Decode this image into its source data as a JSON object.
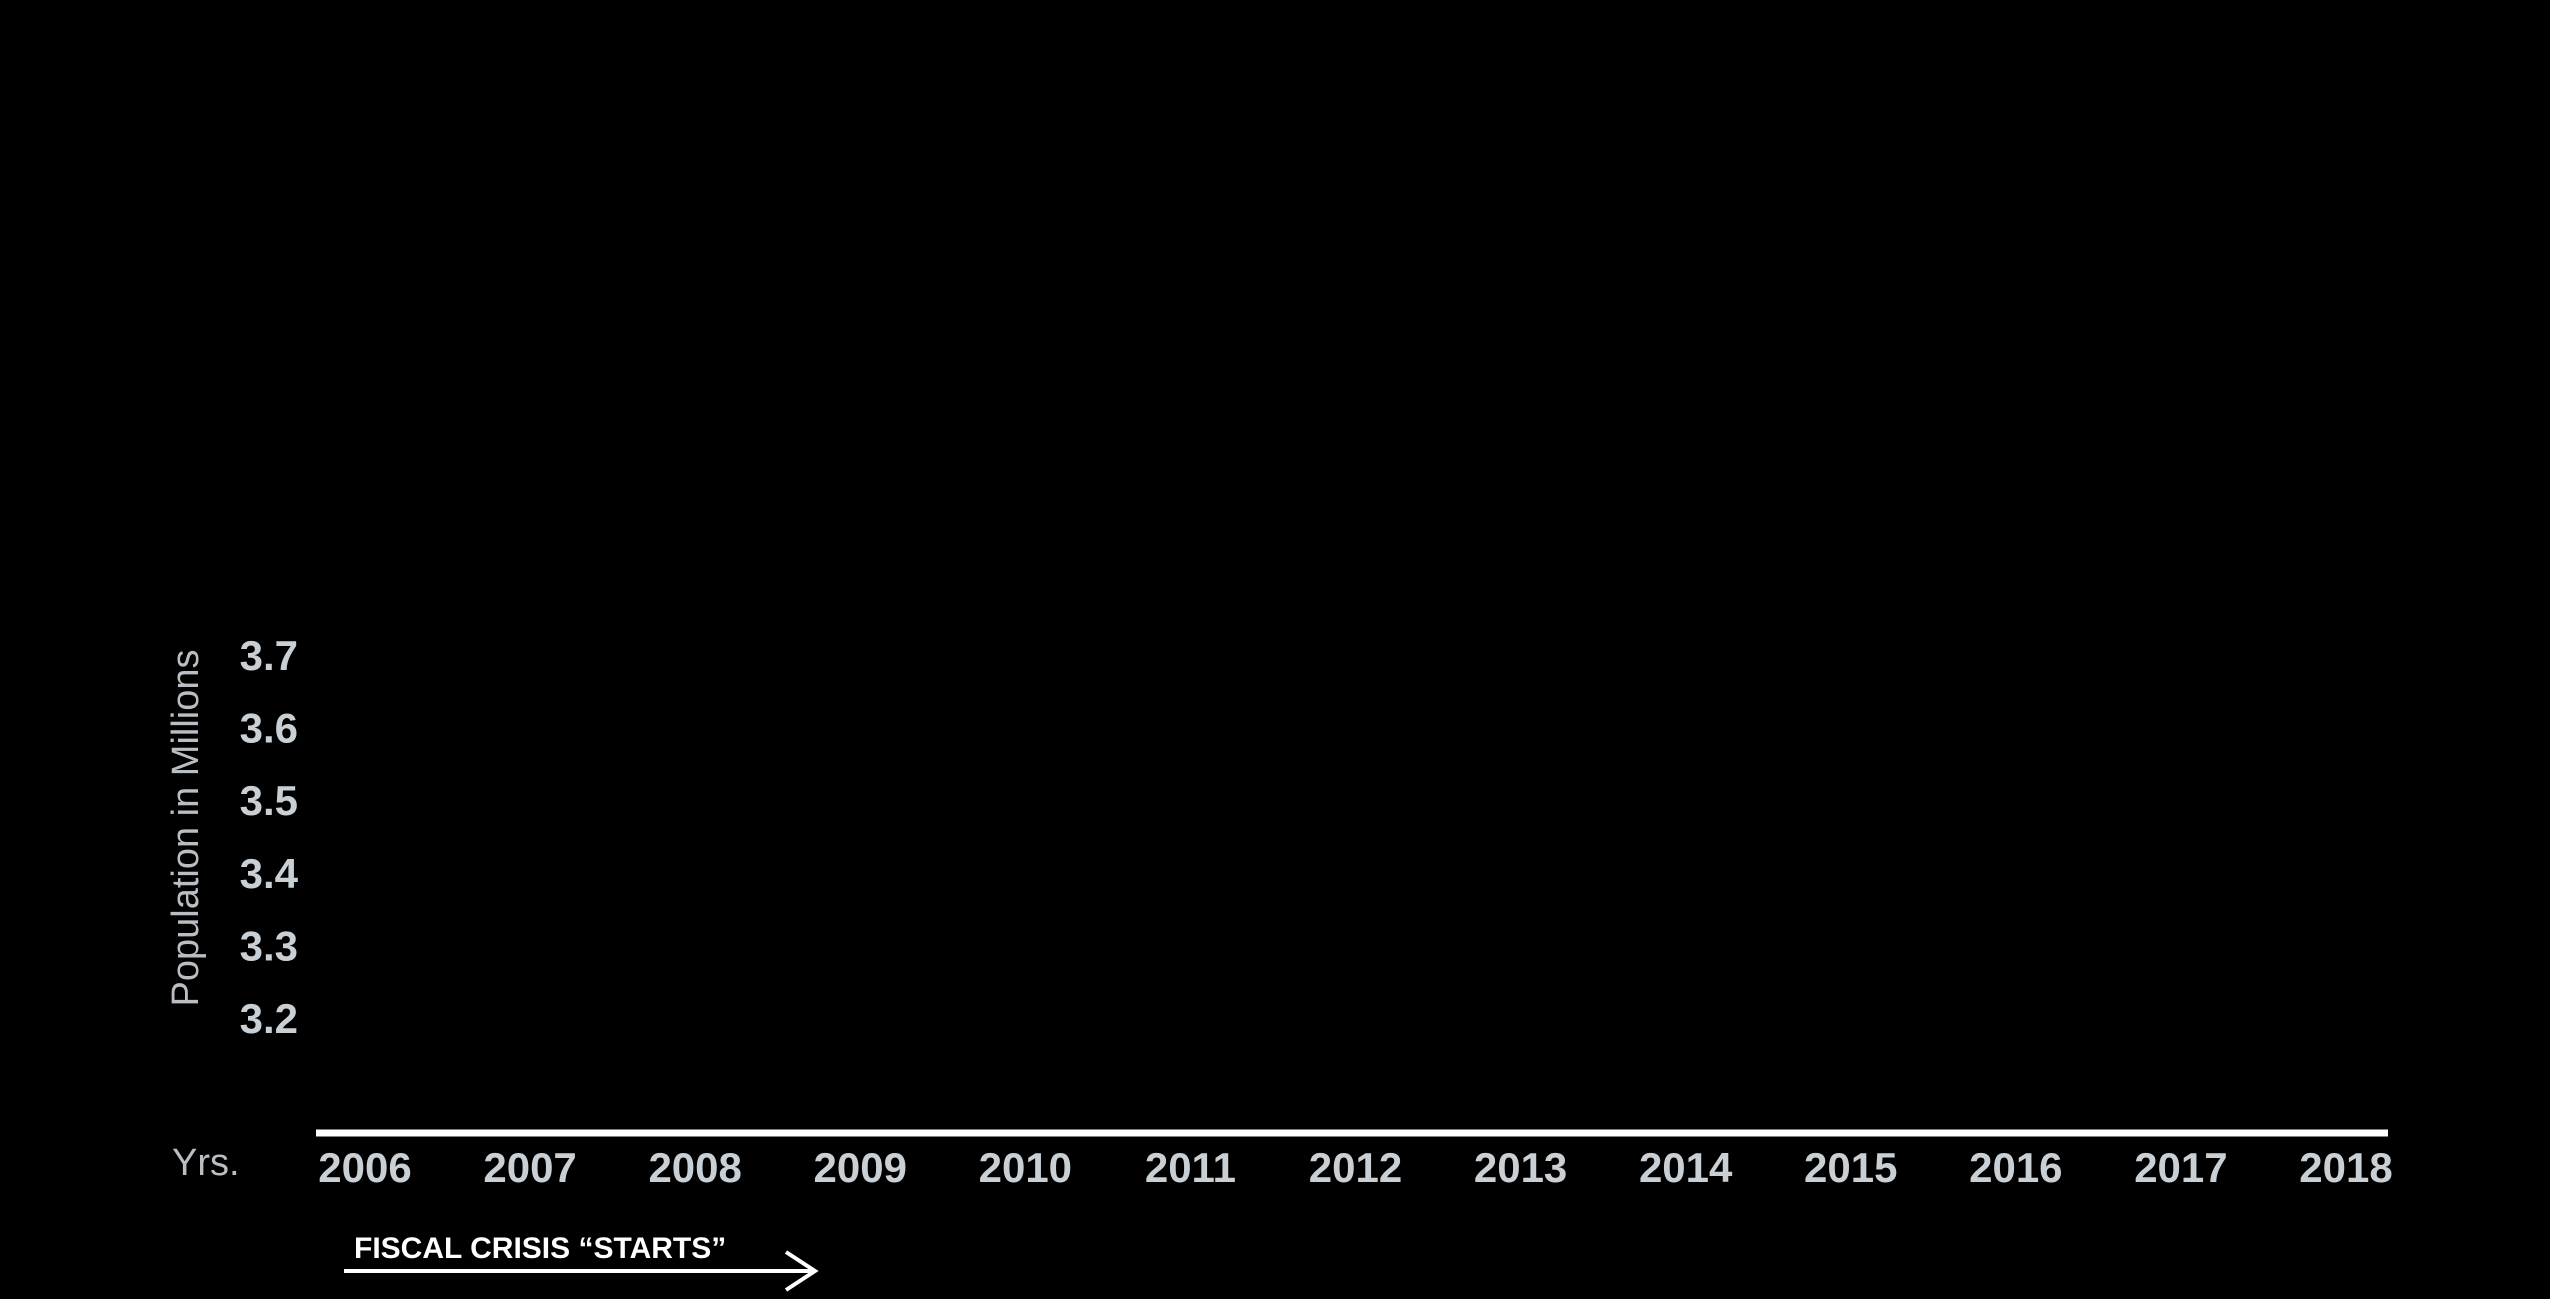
{
  "chart_data": {
    "type": "line",
    "title": "",
    "ylabel": "Population in Millions",
    "xlabel": "Yrs.",
    "y_ticks": [
      "3.7",
      "3.6",
      "3.5",
      "3.4",
      "3.3",
      "3.2"
    ],
    "ylim": [
      3.2,
      3.7
    ],
    "x": [
      "2006",
      "2007",
      "2008",
      "2009",
      "2010",
      "2011",
      "2012",
      "2013",
      "2014",
      "2015",
      "2016",
      "2017",
      "2018"
    ],
    "series": [],
    "grid": false,
    "annotations": [
      {
        "text": "FISCAL CRISIS “STARTS”",
        "arrow": "right"
      }
    ]
  },
  "colors": {
    "background": "#000000",
    "tick_label": "#c8d0d6",
    "axis_title": "#b8bec3",
    "axis_line": "#ffffff",
    "annotation": "#ffffff"
  }
}
